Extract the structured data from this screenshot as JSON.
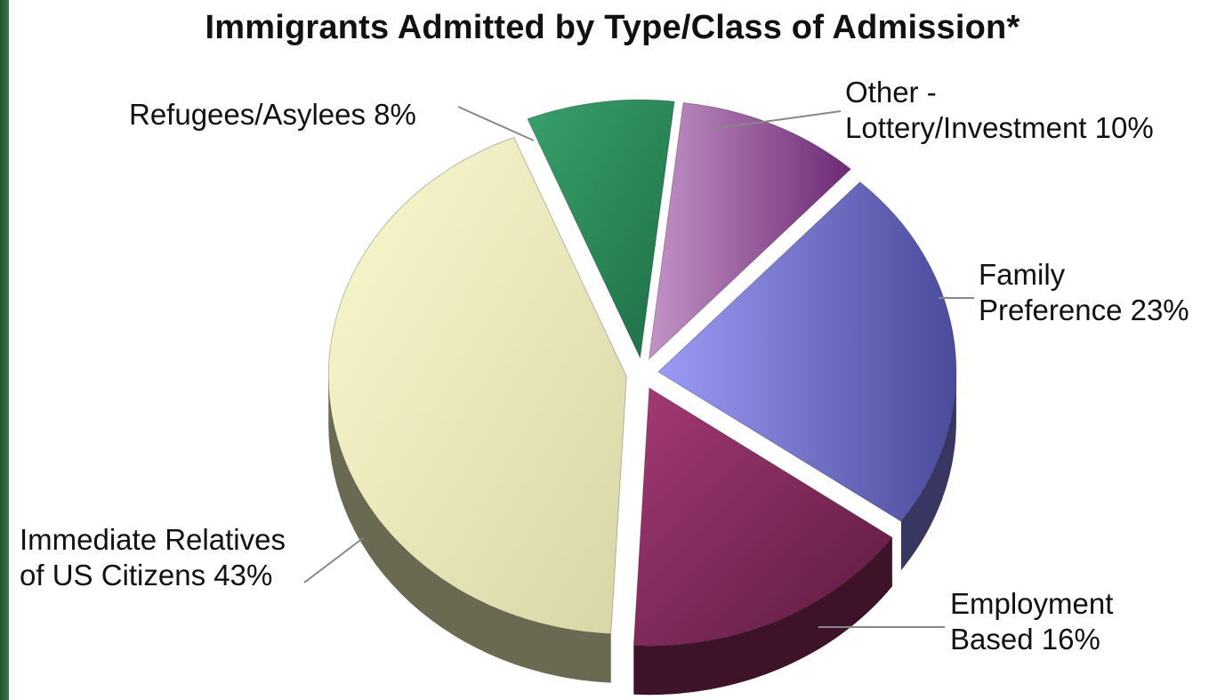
{
  "chart_data": {
    "type": "pie",
    "title": "Immigrants Admitted by Type/Class of Admission*",
    "slices": [
      {
        "name": "Immediate Relatives of US Citizens",
        "value": 43,
        "label_lines": [
          "Immediate Relatives",
          "of US Citizens 43%"
        ],
        "color": "#ecebb8"
      },
      {
        "name": "Refugees/Asylees",
        "value": 8,
        "label_lines": [
          "Refugees/Asylees 8%"
        ],
        "color": "#2e8a5a"
      },
      {
        "name": "Other - Lottery/Investment",
        "value": 10,
        "label_lines": [
          "Other -",
          "Lottery/Investment 10%"
        ],
        "color": "#a05aa0"
      },
      {
        "name": "Family Preference",
        "value": 23,
        "label_lines": [
          "Family",
          "Preference 23%"
        ],
        "color": "#7a7ad8"
      },
      {
        "name": "Employment Based",
        "value": 16,
        "label_lines": [
          "Employment",
          "Based 16%"
        ],
        "color": "#8a2a5e"
      }
    ]
  }
}
